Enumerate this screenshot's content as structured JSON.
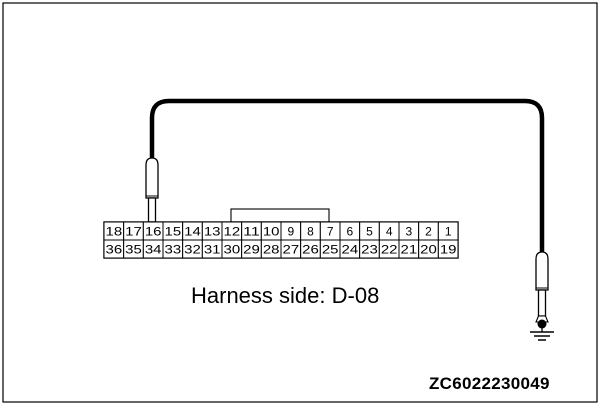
{
  "connector": {
    "top_row": [
      "18",
      "17",
      "16",
      "15",
      "14",
      "13",
      "12",
      "11",
      "10",
      "9",
      "8",
      "7",
      "6",
      "5",
      "4",
      "3",
      "2",
      "1"
    ],
    "bottom_row": [
      "36",
      "35",
      "34",
      "33",
      "32",
      "31",
      "30",
      "29",
      "28",
      "27",
      "26",
      "25",
      "24",
      "23",
      "22",
      "21",
      "20",
      "19"
    ],
    "probe_pin": "16"
  },
  "caption": "Harness side: D-08",
  "figure_code": "ZC6022230049",
  "colors": {
    "line": "#000000",
    "background": "#ffffff"
  },
  "icons": [
    "ground-symbol-icon",
    "test-probe-icon"
  ]
}
